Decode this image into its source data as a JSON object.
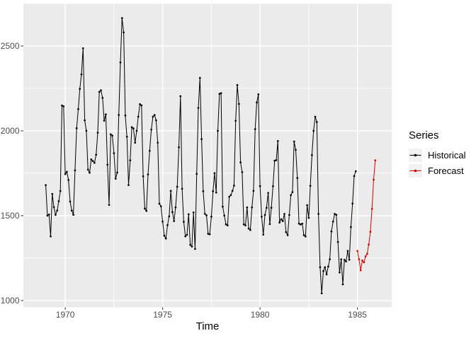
{
  "chart_data": {
    "type": "line",
    "title": "",
    "xlabel": "Time",
    "ylabel": "",
    "legend_title": "Series",
    "legend_position": "right",
    "grid": true,
    "panel_bg": "#EBEBEB",
    "grid_color": "#FFFFFF",
    "tick_label_color": "#4D4D4D",
    "tick_mark_color": "#333333",
    "xlim": [
      1967.85,
      1986.76
    ],
    "ylim": [
      960,
      2750
    ],
    "x_ticks": [
      1970,
      1975,
      1980,
      1985
    ],
    "y_ticks": [
      1000,
      1500,
      2000,
      2500
    ],
    "x_minor": [
      1972.5,
      1977.5,
      1982.5
    ],
    "y_minor": [
      1250,
      1750,
      2250,
      2750
    ],
    "series": [
      {
        "name": "Historical",
        "color": "#000000",
        "start_year": 1969,
        "period": "monthly",
        "values": [
          1680,
          1500,
          1507,
          1378,
          1628,
          1550,
          1505,
          1530,
          1585,
          1645,
          2149,
          2144,
          1745,
          1758,
          1710,
          1583,
          1530,
          1505,
          1767,
          2015,
          2128,
          2247,
          2333,
          2486,
          2062,
          2000,
          1771,
          1753,
          1832,
          1822,
          1811,
          1859,
          1989,
          2229,
          2239,
          2194,
          2060,
          2097,
          1800,
          1563,
          1979,
          1972,
          1868,
          1718,
          1754,
          2093,
          2403,
          2664,
          2580,
          2090,
          1965,
          1680,
          1826,
          2021,
          2014,
          1930,
          2000,
          2083,
          2157,
          2150,
          1732,
          1542,
          1528,
          1743,
          1882,
          2007,
          2083,
          2093,
          2062,
          1930,
          1570,
          1555,
          1465,
          1382,
          1365,
          1444,
          1496,
          1646,
          1521,
          1468,
          1549,
          1670,
          1903,
          2204,
          1658,
          1464,
          1378,
          1387,
          1508,
          1328,
          1318,
          1519,
          1304,
          1746,
          2135,
          2312,
          1951,
          1644,
          1511,
          1502,
          1393,
          1390,
          1494,
          1644,
          1750,
          1636,
          2000,
          2218,
          2222,
          1553,
          1500,
          1449,
          1442,
          1611,
          1621,
          1646,
          1677,
          2059,
          2270,
          2158,
          1814,
          1756,
          1449,
          1442,
          1549,
          1424,
          1415,
          1549,
          1646,
          2010,
          2167,
          2215,
          1674,
          1494,
          1388,
          1504,
          1546,
          1634,
          1450,
          1547,
          1674,
          1824,
          1827,
          1940,
          1459,
          1479,
          1468,
          1510,
          1403,
          1385,
          1504,
          1621,
          1639,
          1937,
          1888,
          1722,
          1453,
          1448,
          1453,
          1385,
          1377,
          1562,
          1487,
          1676,
          1857,
          2000,
          2083,
          2052,
          1510,
          1196,
          1042,
          1174,
          1196,
          1154,
          1200,
          1243,
          1407,
          1465,
          1510,
          1505,
          1345,
          1165,
          1243,
          1095,
          1240,
          1230,
          1292,
          1240,
          1433,
          1571,
          1733,
          1762
        ]
      },
      {
        "name": "Forecast",
        "color": "#D40000",
        "start_year": 1985,
        "period": "monthly",
        "values": [
          1292,
          1243,
          1178,
          1236,
          1225,
          1260,
          1275,
          1330,
          1405,
          1540,
          1712,
          1826
        ]
      }
    ]
  },
  "axes": {
    "x_title": "Time",
    "x_labels": [
      "1970",
      "1975",
      "1980",
      "1985"
    ],
    "y_labels": [
      "1000",
      "1500",
      "2000",
      "2500"
    ]
  },
  "legend": {
    "title": "Series",
    "items": [
      {
        "label": "Historical",
        "color": "#000000"
      },
      {
        "label": "Forecast",
        "color": "#D40000"
      }
    ]
  }
}
